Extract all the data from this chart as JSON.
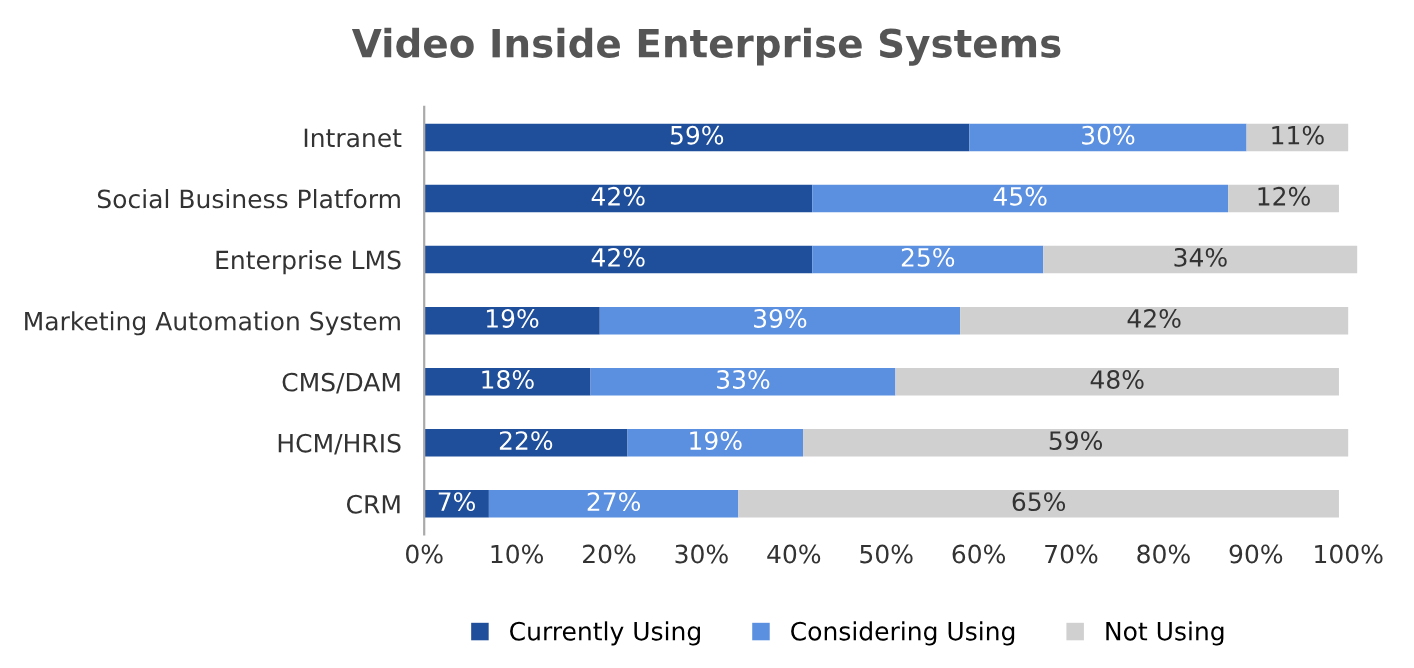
{
  "chart_data": {
    "type": "bar",
    "orientation": "horizontal",
    "stacked": true,
    "title": "Video Inside Enterprise Systems",
    "categories": [
      "Intranet",
      "Social Business Platform",
      "Enterprise LMS",
      "Marketing Automation System",
      "CMS/DAM",
      "HCM/HRIS",
      "CRM"
    ],
    "series": [
      {
        "name": "Currently Using",
        "color": "#1f4e9a",
        "values": [
          59,
          42,
          42,
          19,
          18,
          22,
          7
        ],
        "value_labels": [
          "59%",
          "42%",
          "42%",
          "19%",
          "18%",
          "22%",
          "7%"
        ]
      },
      {
        "name": "Considering Using",
        "color": "#5b8fe0",
        "values": [
          30,
          45,
          25,
          39,
          33,
          19,
          27
        ],
        "value_labels": [
          "30%",
          "45%",
          "25%",
          "39%",
          "33%",
          "19%",
          "27%"
        ]
      },
      {
        "name": "Not Using",
        "color": "#d0d0d0",
        "values": [
          11,
          12,
          34,
          42,
          48,
          59,
          65
        ],
        "value_labels": [
          "11%",
          "12%",
          "34%",
          "42%",
          "48%",
          "59%",
          "65%"
        ]
      }
    ],
    "xlim": [
      0,
      101
    ],
    "xticks": [
      {
        "value": 0,
        "label": "0%"
      },
      {
        "value": 10,
        "label": "10%"
      },
      {
        "value": 20,
        "label": "20%"
      },
      {
        "value": 30,
        "label": "30%"
      },
      {
        "value": 40,
        "label": "40%"
      },
      {
        "value": 50,
        "label": "50%"
      },
      {
        "value": 60,
        "label": "60%"
      },
      {
        "value": 70,
        "label": "70%"
      },
      {
        "value": 80,
        "label": "80%"
      },
      {
        "value": 90,
        "label": "90%"
      },
      {
        "value": 100,
        "label": "100%"
      }
    ],
    "legend": "bottom",
    "grid": false
  }
}
